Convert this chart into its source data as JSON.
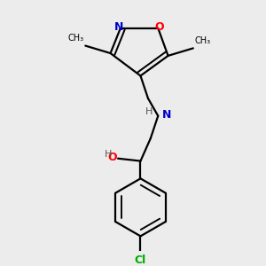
{
  "bg_color": "#ececec",
  "bond_color": "#000000",
  "N_color": "#0000cc",
  "O_color": "#ff0000",
  "Cl_color": "#00aa00",
  "line_width": 1.6,
  "fig_width": 3.0,
  "fig_height": 3.0,
  "dpi": 100,
  "xlim": [
    0.1,
    0.9
  ],
  "ylim": [
    0.02,
    1.02
  ]
}
